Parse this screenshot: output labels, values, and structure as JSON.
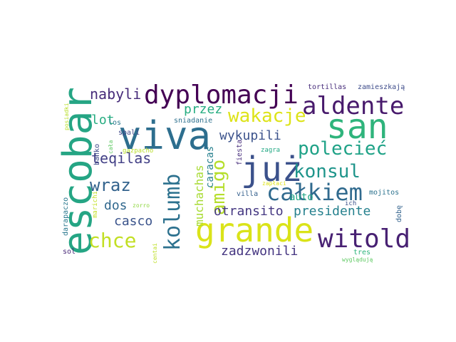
{
  "words": [
    {
      "text": "viva",
      "color": "#2d6e8e"
    },
    {
      "text": "san",
      "color": "#2fb47c"
    },
    {
      "text": "już",
      "color": "#3b518b"
    },
    {
      "text": "escobar",
      "color": "#25a584"
    },
    {
      "text": "grande",
      "color": "#dae319"
    },
    {
      "text": "dyplomacji",
      "color": "#440154"
    },
    {
      "text": "aldente",
      "color": "#481a6c"
    },
    {
      "text": "witold",
      "color": "#482173"
    },
    {
      "text": "kolumb",
      "color": "#2c718e"
    },
    {
      "text": "całkiem",
      "color": "#306a8e"
    },
    {
      "text": "konsul",
      "color": "#1f958b"
    },
    {
      "text": "polecieć",
      "color": "#1fa287"
    },
    {
      "text": "wakacje",
      "color": "#dde318"
    },
    {
      "text": "chce",
      "color": "#c2df23"
    },
    {
      "text": "amigo",
      "color": "#b5de2b"
    },
    {
      "text": "wraz",
      "color": "#33638d"
    },
    {
      "text": "nabyli",
      "color": "#472c7a"
    },
    {
      "text": "teqilas",
      "color": "#424086"
    },
    {
      "text": "presidente",
      "color": "#26818e"
    },
    {
      "text": "zadzwonili",
      "color": "#453581"
    },
    {
      "text": "otransito",
      "color": "#453882"
    },
    {
      "text": "wykupili",
      "color": "#3b528b"
    },
    {
      "text": "casco",
      "color": "#3a538b"
    },
    {
      "text": "dos",
      "color": "#31688e"
    },
    {
      "text": "lot",
      "color": "#26ad81"
    },
    {
      "text": "przez",
      "color": "#26ad81"
    },
    {
      "text": "muchachas",
      "color": "#a8db34"
    },
    {
      "text": "caracas",
      "color": "#27808e"
    },
    {
      "text": "auto",
      "color": "#21a685"
    },
    {
      "text": "banko",
      "color": "#3e4989"
    },
    {
      "text": "cała",
      "color": "#5ec962"
    },
    {
      "text": "spali",
      "color": "#3f4788"
    },
    {
      "text": "los",
      "color": "#2a788e"
    },
    {
      "text": "sniadanie",
      "color": "#2d708e"
    },
    {
      "text": "tortillas",
      "color": "#472d7b"
    },
    {
      "text": "zamieszkają",
      "color": "#3e4c8a"
    },
    {
      "text": "posiadki",
      "color": "#b8de29"
    },
    {
      "text": "gazpacho",
      "color": "#b8de29"
    },
    {
      "text": "fiesta",
      "color": "#472e7c"
    },
    {
      "text": "zagra",
      "color": "#22a884"
    },
    {
      "text": "ich",
      "color": "#3b528b"
    },
    {
      "text": "villa",
      "color": "#35608d"
    },
    {
      "text": "mojitos",
      "color": "#2c728e"
    },
    {
      "text": "zapłaci",
      "color": "#dde318"
    },
    {
      "text": "wyglądują",
      "color": "#5ec962"
    },
    {
      "text": "dobę",
      "color": "#33638d"
    },
    {
      "text": "darapaczo",
      "color": "#2a788e"
    },
    {
      "text": "marichi",
      "color": "#c2df23"
    },
    {
      "text": "zorro",
      "color": "#90d743"
    },
    {
      "text": "centai",
      "color": "#bddf26"
    },
    {
      "text": "sol",
      "color": "#482878"
    },
    {
      "text": "tres",
      "color": "#2fb47c"
    }
  ]
}
